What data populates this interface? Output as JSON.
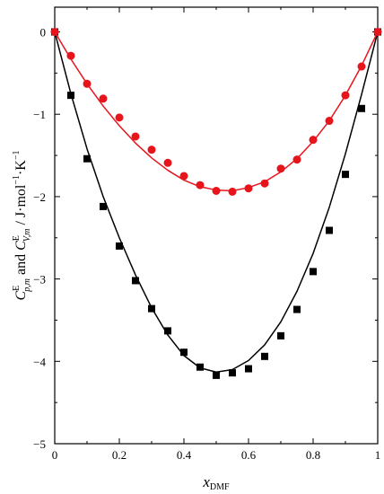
{
  "chart_data": {
    "type": "scatter",
    "x_axis": {
      "label_main": "x",
      "label_sub": "DMF",
      "range": [
        0,
        1
      ],
      "ticks": [
        0,
        0.2,
        0.4,
        0.6,
        0.8,
        1
      ],
      "tick_labels": [
        "0",
        "0.2",
        "0.4",
        "0.6",
        "0.8",
        "1"
      ],
      "minor_ticks": [
        0.1,
        0.3,
        0.5,
        0.7,
        0.9
      ]
    },
    "y_axis": {
      "label_parts": {
        "c1": "C",
        "c1_sup": "E",
        "c1_sub": "p,m",
        "and": " and ",
        "c2": "C",
        "c2_sup": "E",
        "c2_sub": "V,m",
        "units": " / J·mol",
        "units_exp1": "−1",
        "units_k": "·K",
        "units_exp2": "−1"
      },
      "range": [
        -5,
        0.3
      ],
      "ticks": [
        0,
        -1,
        -2,
        -3,
        -4,
        -5
      ],
      "tick_labels": [
        "0",
        "−1",
        "−2",
        "−3",
        "−4",
        "−5"
      ],
      "minor_ticks": [
        -0.5,
        -1.5,
        -2.5,
        -3.5,
        -4.5
      ]
    },
    "grid": false,
    "legend": "none",
    "series": [
      {
        "marker": "square",
        "color": "#000000",
        "points": [
          [
            0,
            0
          ],
          [
            0.05,
            -0.77
          ],
          [
            0.1,
            -1.54
          ],
          [
            0.15,
            -2.12
          ],
          [
            0.2,
            -2.6
          ],
          [
            0.25,
            -3.02
          ],
          [
            0.3,
            -3.36
          ],
          [
            0.35,
            -3.63
          ],
          [
            0.4,
            -3.89
          ],
          [
            0.45,
            -4.07
          ],
          [
            0.5,
            -4.17
          ],
          [
            0.55,
            -4.14
          ],
          [
            0.6,
            -4.09
          ],
          [
            0.65,
            -3.94
          ],
          [
            0.7,
            -3.69
          ],
          [
            0.75,
            -3.37
          ],
          [
            0.8,
            -2.91
          ],
          [
            0.85,
            -2.41
          ],
          [
            0.9,
            -1.73
          ],
          [
            0.95,
            -0.93
          ],
          [
            1,
            0
          ]
        ],
        "fit": [
          [
            0,
            0
          ],
          [
            0.05,
            -0.75
          ],
          [
            0.1,
            -1.42
          ],
          [
            0.15,
            -2.0
          ],
          [
            0.2,
            -2.5
          ],
          [
            0.25,
            -2.95
          ],
          [
            0.3,
            -3.35
          ],
          [
            0.35,
            -3.68
          ],
          [
            0.4,
            -3.93
          ],
          [
            0.45,
            -4.08
          ],
          [
            0.5,
            -4.13
          ],
          [
            0.55,
            -4.1
          ],
          [
            0.6,
            -3.99
          ],
          [
            0.65,
            -3.8
          ],
          [
            0.7,
            -3.52
          ],
          [
            0.75,
            -3.15
          ],
          [
            0.8,
            -2.69
          ],
          [
            0.85,
            -2.13
          ],
          [
            0.9,
            -1.48
          ],
          [
            0.95,
            -0.76
          ],
          [
            1,
            0
          ]
        ]
      },
      {
        "marker": "circle",
        "color": "#e8141c",
        "points": [
          [
            0,
            0
          ],
          [
            0.05,
            -0.29
          ],
          [
            0.1,
            -0.63
          ],
          [
            0.15,
            -0.81
          ],
          [
            0.2,
            -1.04
          ],
          [
            0.25,
            -1.27
          ],
          [
            0.3,
            -1.43
          ],
          [
            0.35,
            -1.59
          ],
          [
            0.4,
            -1.75
          ],
          [
            0.45,
            -1.86
          ],
          [
            0.5,
            -1.93
          ],
          [
            0.55,
            -1.94
          ],
          [
            0.6,
            -1.9
          ],
          [
            0.65,
            -1.84
          ],
          [
            0.7,
            -1.66
          ],
          [
            0.75,
            -1.55
          ],
          [
            0.8,
            -1.31
          ],
          [
            0.85,
            -1.08
          ],
          [
            0.9,
            -0.77
          ],
          [
            0.95,
            -0.42
          ],
          [
            1,
            0
          ]
        ],
        "fit": [
          [
            0,
            0
          ],
          [
            0.05,
            -0.33
          ],
          [
            0.1,
            -0.63
          ],
          [
            0.15,
            -0.9
          ],
          [
            0.2,
            -1.14
          ],
          [
            0.25,
            -1.35
          ],
          [
            0.3,
            -1.53
          ],
          [
            0.35,
            -1.68
          ],
          [
            0.4,
            -1.8
          ],
          [
            0.45,
            -1.88
          ],
          [
            0.5,
            -1.92
          ],
          [
            0.55,
            -1.93
          ],
          [
            0.6,
            -1.89
          ],
          [
            0.65,
            -1.82
          ],
          [
            0.7,
            -1.7
          ],
          [
            0.75,
            -1.54
          ],
          [
            0.8,
            -1.33
          ],
          [
            0.85,
            -1.08
          ],
          [
            0.9,
            -0.77
          ],
          [
            0.95,
            -0.41
          ],
          [
            1,
            0
          ]
        ]
      }
    ]
  }
}
